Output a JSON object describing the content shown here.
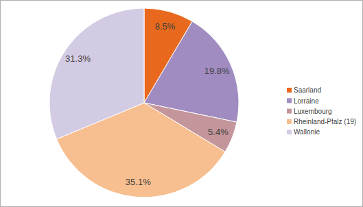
{
  "chart_data": {
    "type": "pie",
    "categories": [
      "Saarland",
      "Lorraine",
      "Luxembourg",
      "Rheinland-Pfalz (19)",
      "Wallonie"
    ],
    "values": [
      8.5,
      19.8,
      5.4,
      35.1,
      31.3
    ],
    "value_labels": [
      "8.5%",
      "19.8%",
      "5.4%",
      "35.1%",
      "31.3%"
    ],
    "colors": [
      "#e8691e",
      "#a08cc1",
      "#c4969b",
      "#f7be8f",
      "#d3cbe3"
    ],
    "data_labels": true,
    "legend": "right"
  }
}
